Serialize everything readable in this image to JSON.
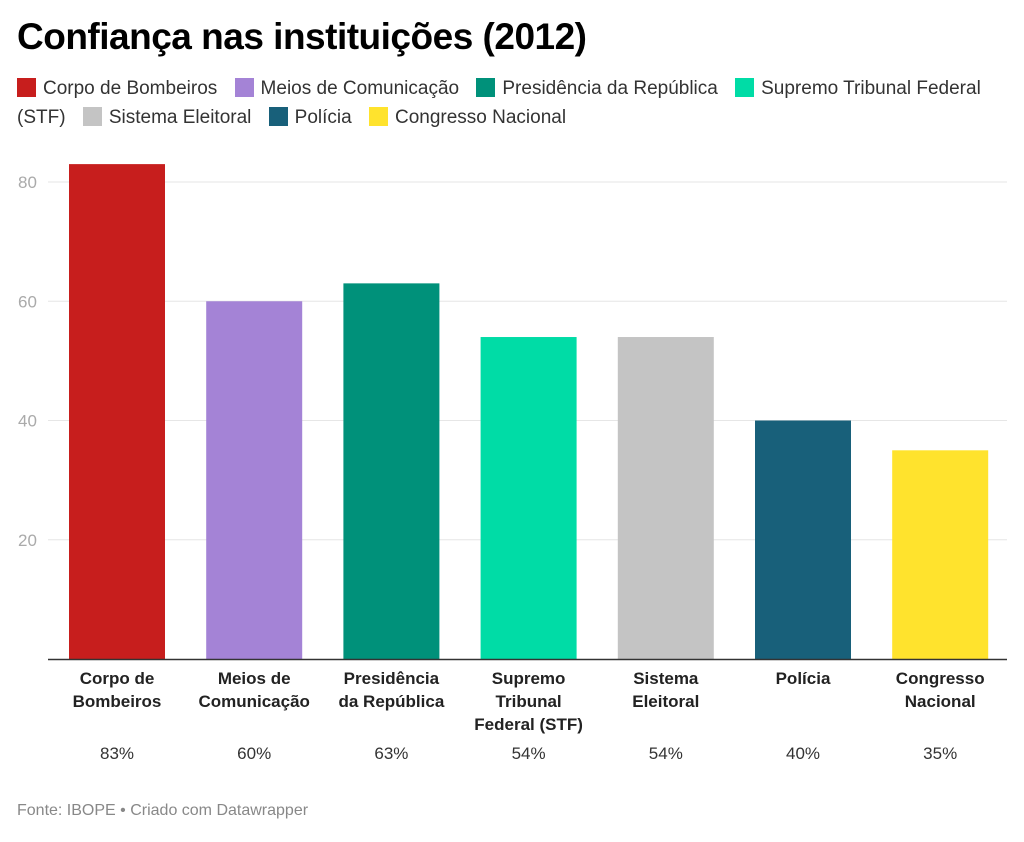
{
  "title": "Confiança nas instituições (2012)",
  "footer": "Fonte: IBOPE • Criado com Datawrapper",
  "chart_data": {
    "type": "bar",
    "title": "Confiança nas instituições (2012)",
    "xlabel": "",
    "ylabel": "",
    "ylim": [
      0,
      85
    ],
    "yticks": [
      "20",
      "40",
      "60",
      "80"
    ],
    "ytick_values": [
      20,
      40,
      60,
      80
    ],
    "grid": true,
    "legend": "top",
    "categories": [
      {
        "label_lines": [
          "Corpo de",
          "Bombeiros"
        ],
        "legend": "Corpo de Bombeiros",
        "value": 83,
        "value_label": "83%",
        "color": "#c71e1d"
      },
      {
        "label_lines": [
          "Meios de",
          "Comunicação"
        ],
        "legend": "Meios de Comunicação",
        "value": 60,
        "value_label": "60%",
        "color": "#a483d6"
      },
      {
        "label_lines": [
          "Presidência",
          "da República"
        ],
        "legend": "Presidência da República",
        "value": 63,
        "value_label": "63%",
        "color": "#00917a"
      },
      {
        "label_lines": [
          "Supremo",
          "Tribunal",
          "Federal (STF)"
        ],
        "legend": "Supremo Tribunal Federal (STF)",
        "value": 54,
        "value_label": "54%",
        "color": "#00dca6"
      },
      {
        "label_lines": [
          "Sistema",
          "Eleitoral"
        ],
        "legend": "Sistema Eleitoral",
        "value": 54,
        "value_label": "54%",
        "color": "#c4c4c4"
      },
      {
        "label_lines": [
          "Polícia"
        ],
        "legend": "Polícia",
        "value": 40,
        "value_label": "40%",
        "color": "#18607a"
      },
      {
        "label_lines": [
          "Congresso",
          "Nacional"
        ],
        "legend": "Congresso Nacional",
        "value": 35,
        "value_label": "35%",
        "color": "#ffe32d"
      }
    ]
  }
}
